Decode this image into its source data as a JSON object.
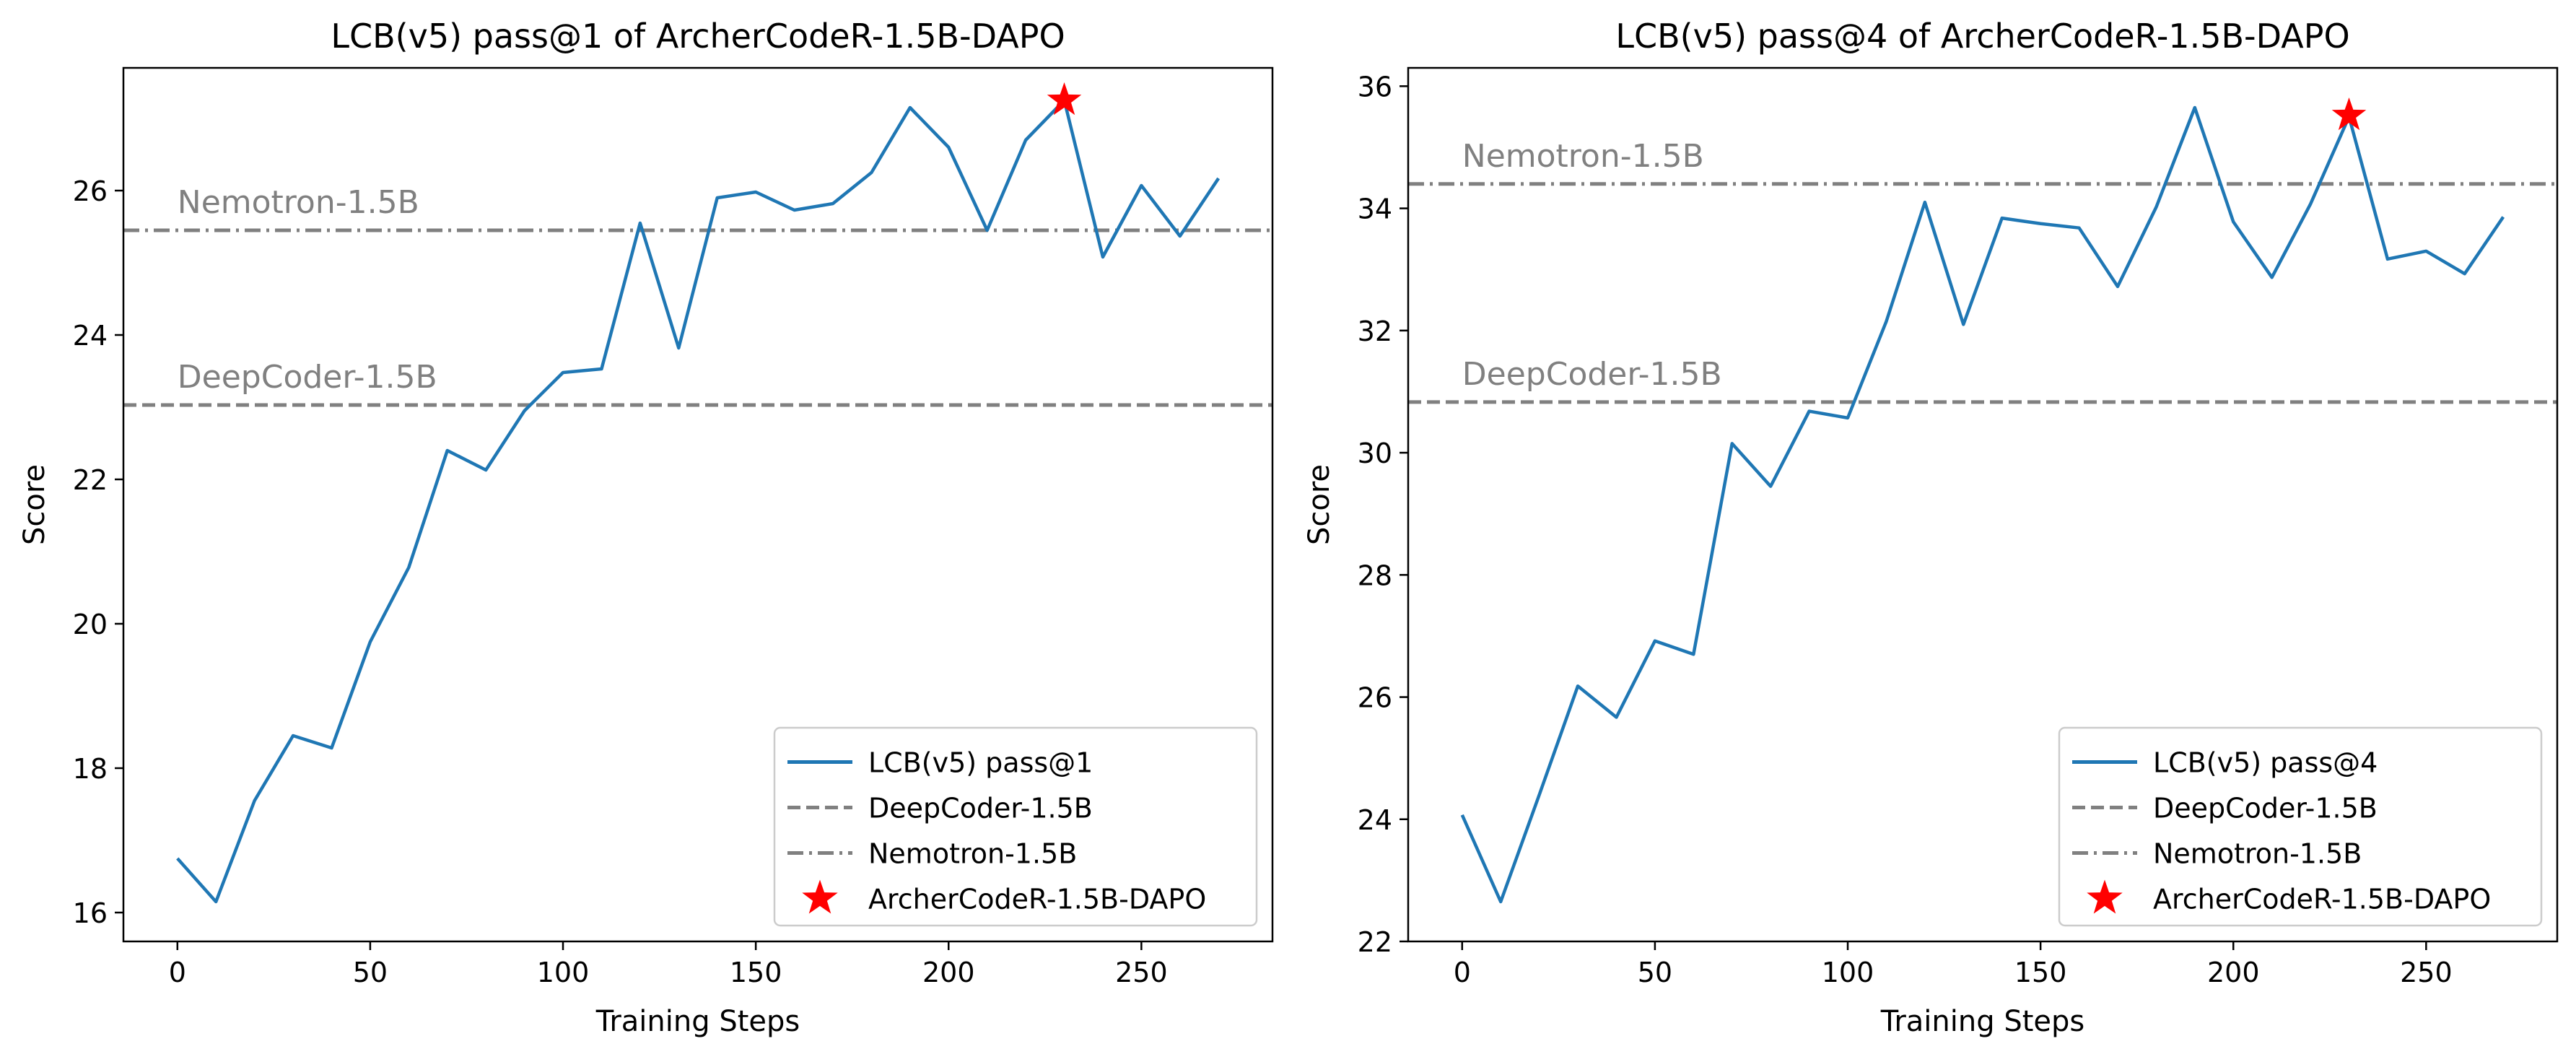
{
  "chart_data": [
    {
      "type": "line",
      "title": "LCB(v5) pass@1 of ArcherCodeR-1.5B-DAPO",
      "xlabel": "Training Steps",
      "ylabel": "Score",
      "xlim": [
        -14,
        284
      ],
      "ylim": [
        15.6,
        27.7
      ],
      "xticks": [
        0,
        50,
        100,
        150,
        200,
        250
      ],
      "yticks": [
        16,
        18,
        20,
        22,
        24,
        26
      ],
      "grid": false,
      "legend_position": "lower right",
      "x": [
        0,
        10,
        20,
        30,
        40,
        50,
        60,
        70,
        80,
        90,
        100,
        110,
        120,
        130,
        140,
        150,
        160,
        170,
        180,
        190,
        200,
        210,
        220,
        230,
        240,
        250,
        260,
        270
      ],
      "series": [
        {
          "name": "LCB(v5) pass@1",
          "color": "#1f77b4",
          "values": [
            16.75,
            16.15,
            17.55,
            18.45,
            18.28,
            19.75,
            20.78,
            22.4,
            22.13,
            22.95,
            23.48,
            23.53,
            25.55,
            23.82,
            25.9,
            25.98,
            25.73,
            25.82,
            26.25,
            27.15,
            26.6,
            25.45,
            26.7,
            27.25,
            25.08,
            26.07,
            25.37,
            26.17
          ]
        }
      ],
      "reference_lines": [
        {
          "name": "DeepCoder-1.5B",
          "value": 23.03,
          "style": "dashed",
          "color": "#808080",
          "label": "DeepCoder-1.5B"
        },
        {
          "name": "Nemotron-1.5B",
          "value": 25.45,
          "style": "dashdot",
          "color": "#808080",
          "label": "Nemotron-1.5B"
        }
      ],
      "highlight_point": {
        "name": "ArcherCodeR-1.5B-DAPO",
        "x": 230,
        "y": 27.25,
        "marker": "star",
        "color": "#ff0000"
      }
    },
    {
      "type": "line",
      "title": "LCB(v5) pass@4 of ArcherCodeR-1.5B-DAPO",
      "xlabel": "Training Steps",
      "ylabel": "Score",
      "xlim": [
        -14,
        284
      ],
      "ylim": [
        22.0,
        36.3
      ],
      "xticks": [
        0,
        50,
        100,
        150,
        200,
        250
      ],
      "yticks": [
        22,
        24,
        26,
        28,
        30,
        32,
        34,
        36
      ],
      "grid": false,
      "legend_position": "lower right",
      "x": [
        0,
        10,
        20,
        30,
        40,
        50,
        60,
        70,
        80,
        90,
        100,
        110,
        120,
        130,
        140,
        150,
        160,
        170,
        180,
        190,
        200,
        210,
        220,
        230,
        240,
        250,
        260,
        270
      ],
      "series": [
        {
          "name": "LCB(v5) pass@4",
          "color": "#1f77b4",
          "values": [
            24.07,
            22.65,
            24.4,
            26.18,
            25.67,
            26.92,
            26.7,
            30.15,
            29.45,
            30.68,
            30.57,
            32.15,
            34.1,
            32.1,
            33.84,
            33.75,
            33.68,
            32.72,
            34.02,
            35.65,
            33.78,
            32.87,
            34.07,
            35.5,
            33.17,
            33.3,
            32.93,
            33.86
          ]
        }
      ],
      "reference_lines": [
        {
          "name": "DeepCoder-1.5B",
          "value": 30.83,
          "style": "dashed",
          "color": "#808080",
          "label": "DeepCoder-1.5B"
        },
        {
          "name": "Nemotron-1.5B",
          "value": 34.4,
          "style": "dashdot",
          "color": "#808080",
          "label": "Nemotron-1.5B"
        }
      ],
      "highlight_point": {
        "name": "ArcherCodeR-1.5B-DAPO",
        "x": 230,
        "y": 35.52,
        "marker": "star",
        "color": "#ff0000"
      }
    }
  ]
}
